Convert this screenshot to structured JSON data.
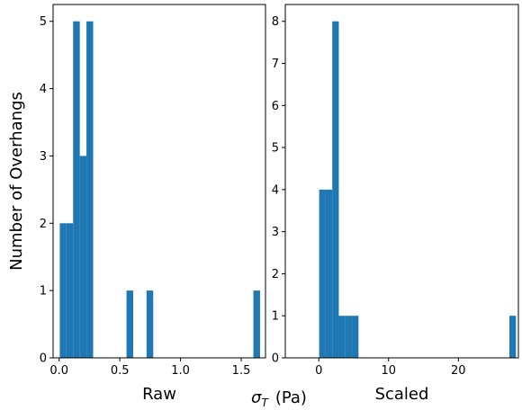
{
  "chart_data": [
    {
      "type": "histogram",
      "xlabel": "Raw",
      "ylabel": "Number of Overhangs",
      "color": "#1f77b4",
      "bins": [
        0.005,
        0.06,
        0.115,
        0.17,
        0.225,
        0.28,
        0.335,
        0.39,
        0.445,
        0.5,
        0.555,
        0.61,
        0.665,
        0.72,
        0.775,
        0.83,
        0.885,
        0.94,
        0.995,
        1.05,
        1.105,
        1.16,
        1.215,
        1.27,
        1.325,
        1.38,
        1.435,
        1.49,
        1.545,
        1.6,
        1.655
      ],
      "values": [
        2,
        2,
        5,
        3,
        5,
        0,
        0,
        0,
        0,
        0,
        1,
        0,
        0,
        1,
        0,
        0,
        0,
        0,
        0,
        0,
        0,
        0,
        0,
        0,
        0,
        0,
        0,
        0,
        0,
        1
      ],
      "xlim": [
        -0.05,
        1.7
      ],
      "ylim": [
        0,
        5.25
      ],
      "xticks": [
        {
          "value": 0,
          "label": "0.0"
        },
        0.5,
        {
          "value": 1,
          "label": "1.0"
        },
        1.5
      ],
      "yticks": [
        0,
        1,
        2,
        3,
        4,
        5
      ]
    },
    {
      "type": "histogram",
      "xlabel": "Scaled",
      "color": "#1f77b4",
      "bins": [
        0.05,
        0.99,
        1.93,
        2.87,
        3.81,
        4.75,
        5.69,
        6.63,
        7.57,
        8.51,
        9.45,
        10.39,
        11.33,
        12.27,
        13.21,
        14.15,
        15.09,
        16.03,
        16.97,
        17.91,
        18.85,
        19.79,
        20.73,
        21.67,
        22.61,
        23.55,
        24.49,
        25.43,
        26.37,
        27.31,
        28.25
      ],
      "values": [
        4,
        4,
        8,
        1,
        1,
        1,
        0,
        0,
        0,
        0,
        0,
        0,
        0,
        0,
        0,
        0,
        0,
        0,
        0,
        0,
        0,
        0,
        0,
        0,
        0,
        0,
        0,
        0,
        0,
        1
      ],
      "xlim": [
        -4.8,
        28.6
      ],
      "ylim": [
        0,
        8.4
      ],
      "xticks": [
        0,
        10,
        20
      ],
      "yticks": [
        0,
        1,
        2,
        3,
        4,
        5,
        6,
        7,
        8
      ]
    }
  ],
  "figure_label": {
    "symbol": "σ",
    "subscript": "T",
    "unit": "(Pa)"
  }
}
